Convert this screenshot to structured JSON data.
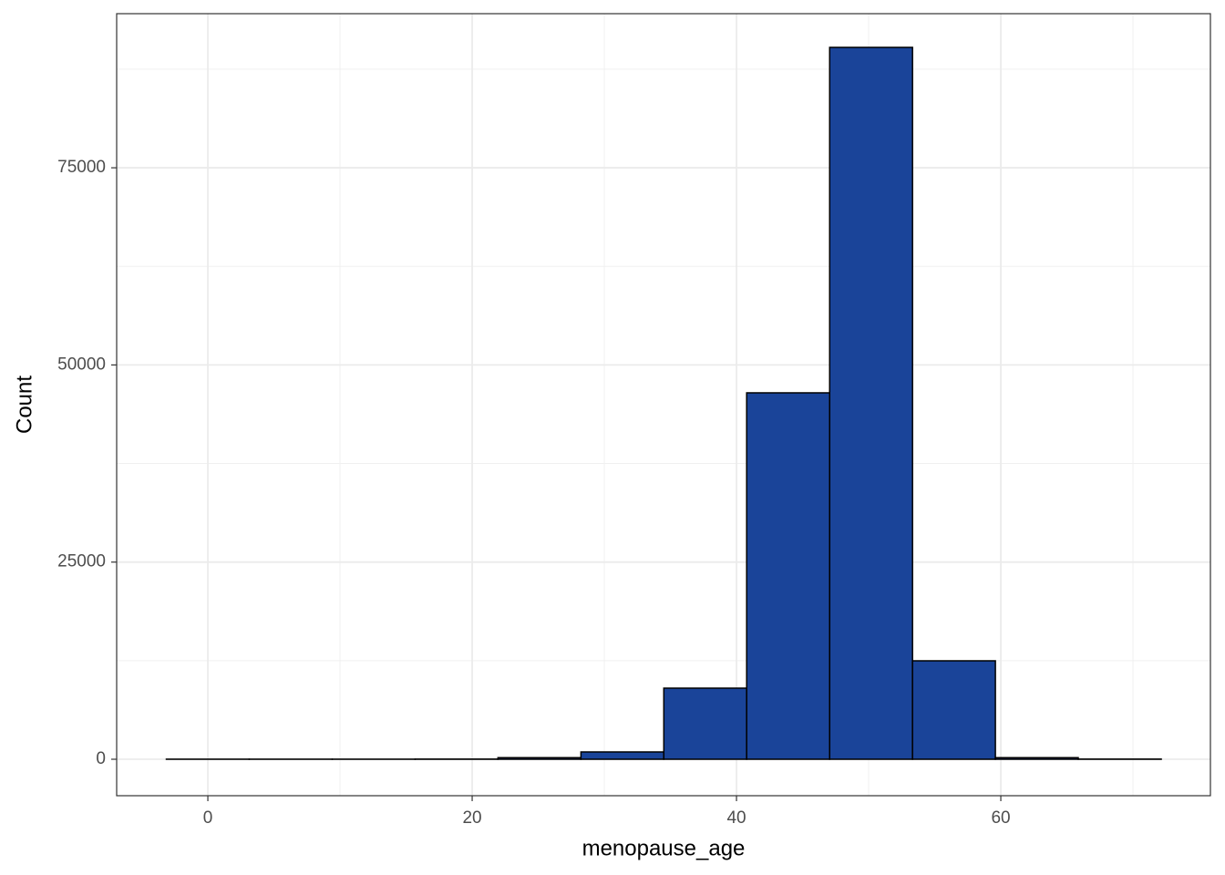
{
  "chart_data": {
    "type": "histogram",
    "x_label": "menopause_age",
    "y_label": "Count",
    "bins": [
      -3.14,
      3.13,
      9.41,
      15.68,
      21.95,
      28.23,
      34.5,
      40.77,
      47.05,
      53.32,
      59.59,
      65.86,
      72.14
    ],
    "counts": [
      10,
      10,
      10,
      20,
      200,
      925,
      9015,
      46463,
      90268,
      12483,
      200,
      20
    ],
    "color": "#1a4499",
    "edge_color": "#000000",
    "xlim": [
      -6.9,
      75.86
    ],
    "ylim": [
      -4623,
      94542
    ],
    "xticks": [
      0,
      20,
      40,
      60
    ],
    "yticks": [
      0,
      25000,
      50000,
      75000
    ],
    "x_minor_ticks": [
      10,
      30,
      50,
      70
    ],
    "y_minor_ticks": [
      12500,
      37500,
      62500,
      87500
    ],
    "grid": true
  }
}
